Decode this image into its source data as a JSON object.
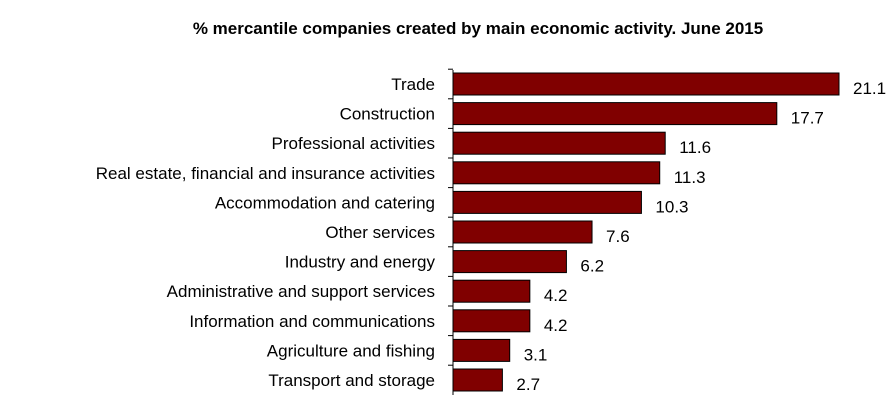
{
  "chart_data": {
    "type": "bar",
    "orientation": "horizontal",
    "title": "% mercantile companies created  by main economic activity. June 2015",
    "xlabel": "",
    "ylabel": "",
    "categories": [
      "Trade",
      "Construction",
      "Professional activities",
      "Real estate, financial and insurance activities",
      "Accommodation and catering",
      "Other services",
      "Industry and energy",
      "Administrative and support services",
      "Information and communications",
      "Agriculture and fishing",
      "Transport and storage"
    ],
    "values": [
      21.1,
      17.7,
      11.6,
      11.3,
      10.3,
      7.6,
      6.2,
      4.2,
      4.2,
      3.1,
      2.7
    ],
    "value_labels": [
      "21.1",
      "17.7",
      "11.6",
      "11.3",
      "10.3",
      "7.6",
      "6.2",
      "4.2",
      "4.2",
      "3.1",
      "2.7"
    ],
    "xlim": [
      0,
      21.1
    ],
    "grid": false,
    "legend": "none",
    "bar_color": "#800000",
    "bar_border_color": "#000000"
  }
}
